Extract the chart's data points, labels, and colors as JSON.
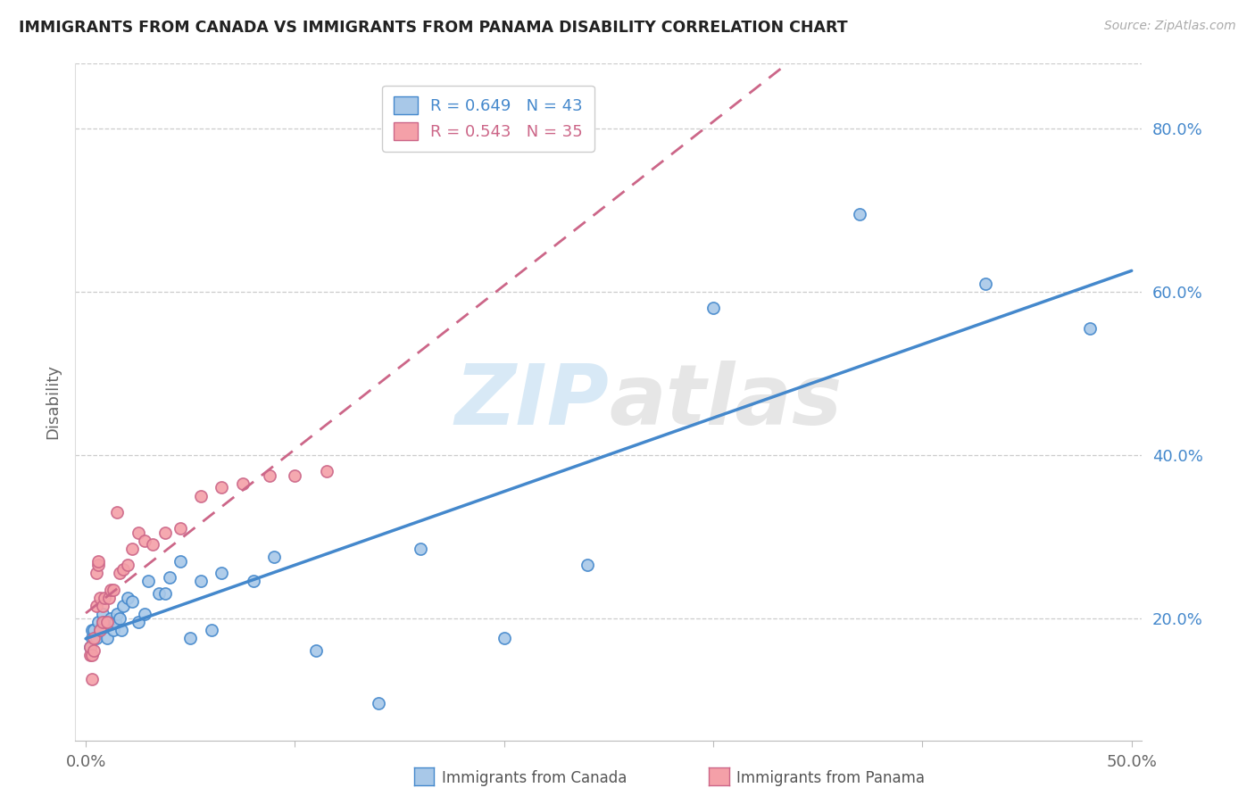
{
  "title": "IMMIGRANTS FROM CANADA VS IMMIGRANTS FROM PANAMA DISABILITY CORRELATION CHART",
  "source": "Source: ZipAtlas.com",
  "ylabel": "Disability",
  "xlim": [
    0.0,
    0.5
  ],
  "ylim": [
    0.05,
    0.85
  ],
  "yticks": [
    0.2,
    0.4,
    0.6,
    0.8
  ],
  "ytick_labels": [
    "20.0%",
    "40.0%",
    "60.0%",
    "80.0%"
  ],
  "xticks": [
    0.0,
    0.1,
    0.2,
    0.3,
    0.4,
    0.5
  ],
  "xtick_labels": [
    "0.0%",
    "",
    "",
    "",
    "",
    "50.0%"
  ],
  "legend_canada_r": "R = 0.649",
  "legend_canada_n": "N = 43",
  "legend_panama_r": "R = 0.543",
  "legend_panama_n": "N = 35",
  "color_canada": "#a8c8e8",
  "color_panama": "#f4a0a8",
  "color_canada_line": "#4488cc",
  "color_panama_line": "#cc6688",
  "watermark_zip": "ZIP",
  "watermark_atlas": "atlas",
  "canada_x": [
    0.002,
    0.003,
    0.003,
    0.004,
    0.005,
    0.006,
    0.007,
    0.008,
    0.008,
    0.009,
    0.01,
    0.011,
    0.012,
    0.013,
    0.014,
    0.015,
    0.016,
    0.017,
    0.018,
    0.02,
    0.022,
    0.025,
    0.028,
    0.03,
    0.035,
    0.038,
    0.04,
    0.045,
    0.05,
    0.055,
    0.06,
    0.065,
    0.08,
    0.09,
    0.11,
    0.14,
    0.16,
    0.2,
    0.24,
    0.3,
    0.37,
    0.43,
    0.48
  ],
  "canada_y": [
    0.165,
    0.175,
    0.185,
    0.185,
    0.175,
    0.195,
    0.185,
    0.195,
    0.205,
    0.195,
    0.175,
    0.195,
    0.2,
    0.185,
    0.195,
    0.205,
    0.2,
    0.185,
    0.215,
    0.225,
    0.22,
    0.195,
    0.205,
    0.245,
    0.23,
    0.23,
    0.25,
    0.27,
    0.175,
    0.245,
    0.185,
    0.255,
    0.245,
    0.275,
    0.16,
    0.095,
    0.285,
    0.175,
    0.265,
    0.58,
    0.695,
    0.61,
    0.555
  ],
  "panama_x": [
    0.002,
    0.002,
    0.003,
    0.003,
    0.004,
    0.004,
    0.005,
    0.005,
    0.006,
    0.006,
    0.007,
    0.007,
    0.008,
    0.008,
    0.009,
    0.01,
    0.011,
    0.012,
    0.013,
    0.015,
    0.016,
    0.018,
    0.02,
    0.022,
    0.025,
    0.028,
    0.032,
    0.038,
    0.045,
    0.055,
    0.065,
    0.075,
    0.088,
    0.1,
    0.115
  ],
  "panama_y": [
    0.155,
    0.165,
    0.155,
    0.125,
    0.16,
    0.175,
    0.215,
    0.255,
    0.265,
    0.27,
    0.185,
    0.225,
    0.195,
    0.215,
    0.225,
    0.195,
    0.225,
    0.235,
    0.235,
    0.33,
    0.255,
    0.26,
    0.265,
    0.285,
    0.305,
    0.295,
    0.29,
    0.305,
    0.31,
    0.35,
    0.36,
    0.365,
    0.375,
    0.375,
    0.38
  ]
}
